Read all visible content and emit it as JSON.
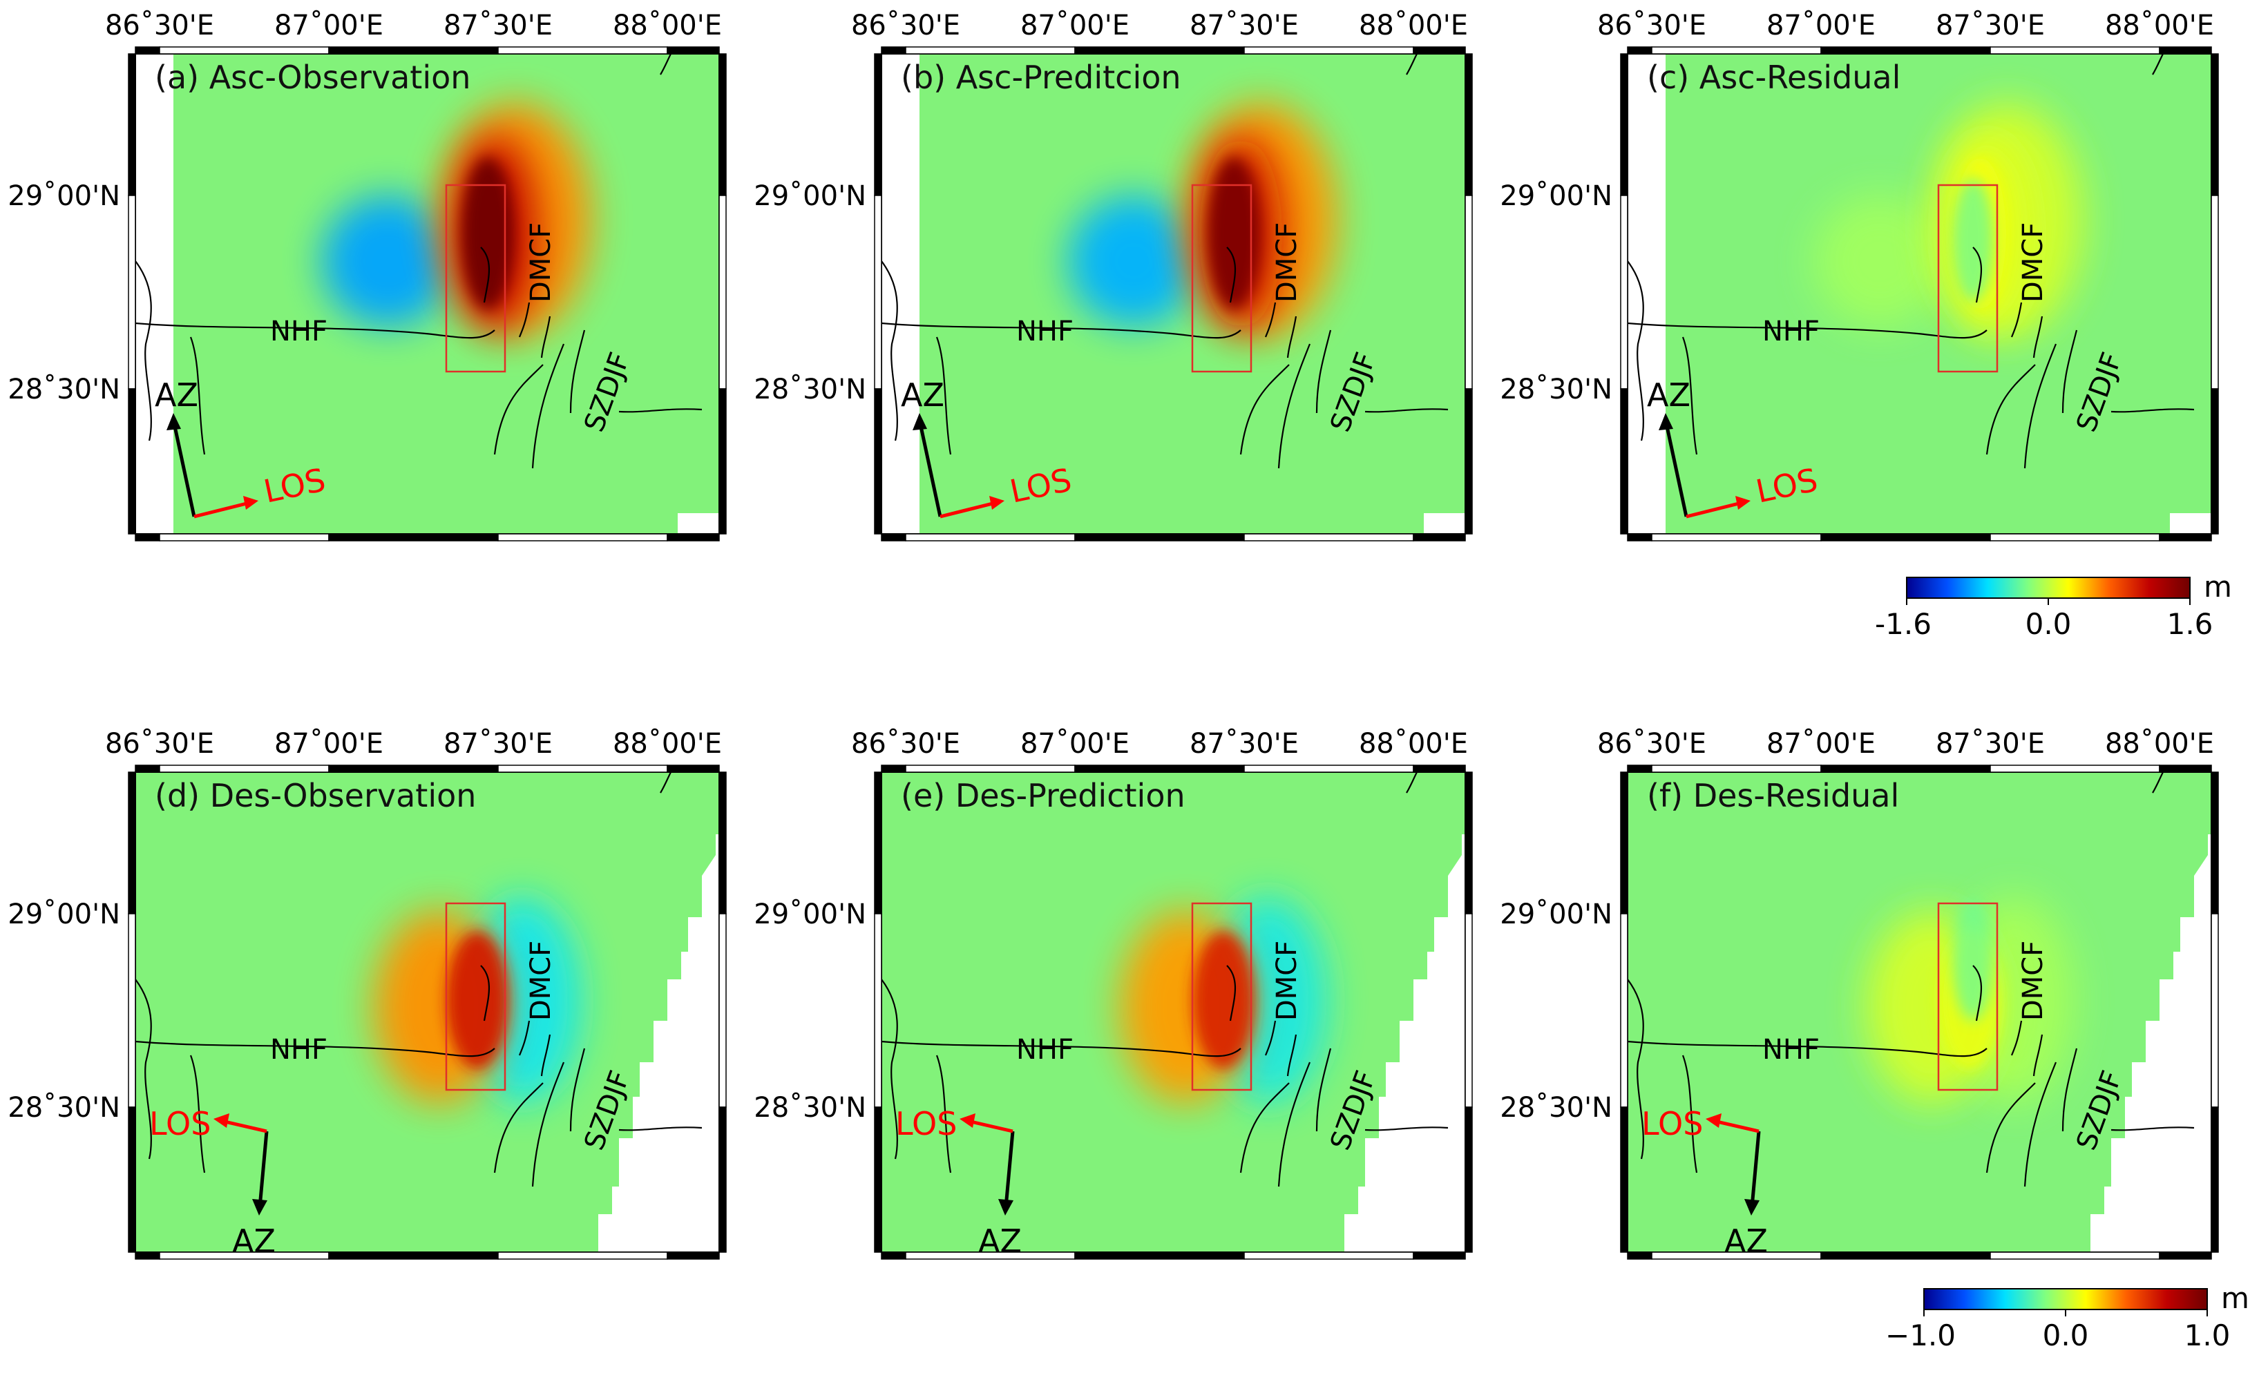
{
  "figure": {
    "longitude_ticks": [
      "86˚30'E",
      "87˚00'E",
      "87˚30'E",
      "88˚00'E"
    ],
    "latitude_ticks": [
      "29˚00'N",
      "28˚30'N"
    ],
    "fault_labels": {
      "nhf": "NHF",
      "dmcf": "DMCF",
      "szdjf": "SZDJF"
    },
    "panels": [
      {
        "title": "(a)   Asc-Observation",
        "geometry": "ascending",
        "sign": 1,
        "amplitude": 1.0,
        "los_label": "LOS",
        "az_label": "AZ"
      },
      {
        "title": "(b)   Asc-Preditcion",
        "geometry": "ascending",
        "sign": 1,
        "amplitude": 0.95,
        "los_label": "LOS",
        "az_label": "AZ"
      },
      {
        "title": "(c)   Asc-Residual",
        "geometry": "ascending",
        "sign": 1,
        "amplitude": 0.12,
        "los_label": "LOS",
        "az_label": "AZ"
      },
      {
        "title": "(d)  Des-Observation",
        "geometry": "descending",
        "sign": -1,
        "amplitude": 0.85,
        "los_label": "LOS",
        "az_label": "AZ"
      },
      {
        "title": "(e)   Des-Prediction",
        "geometry": "descending",
        "sign": -1,
        "amplitude": 0.8,
        "los_label": "LOS",
        "az_label": "AZ"
      },
      {
        "title": "(f)  Des-Residual",
        "geometry": "descending",
        "sign": -1,
        "amplitude": 0.12,
        "los_label": "LOS",
        "az_label": "AZ"
      }
    ],
    "colorbars": [
      {
        "unit": "m",
        "min": "-1.6",
        "mid": "0.0",
        "max": "1.6",
        "range": [
          -1.6,
          1.6
        ]
      },
      {
        "unit": "m",
        "min": "−1.0",
        "mid": "0.0",
        "max": "1.0",
        "range": [
          -1.0,
          1.0
        ]
      }
    ],
    "colormap": [
      "#000090",
      "#0050ff",
      "#00e0ff",
      "#80ff80",
      "#ffff00",
      "#ff6000",
      "#c00000",
      "#700000"
    ],
    "colors": {
      "background_field": "#82f27a",
      "fault_box": "#e0302a",
      "los_arrow": "#ff0000",
      "az_arrow": "#000000"
    }
  }
}
